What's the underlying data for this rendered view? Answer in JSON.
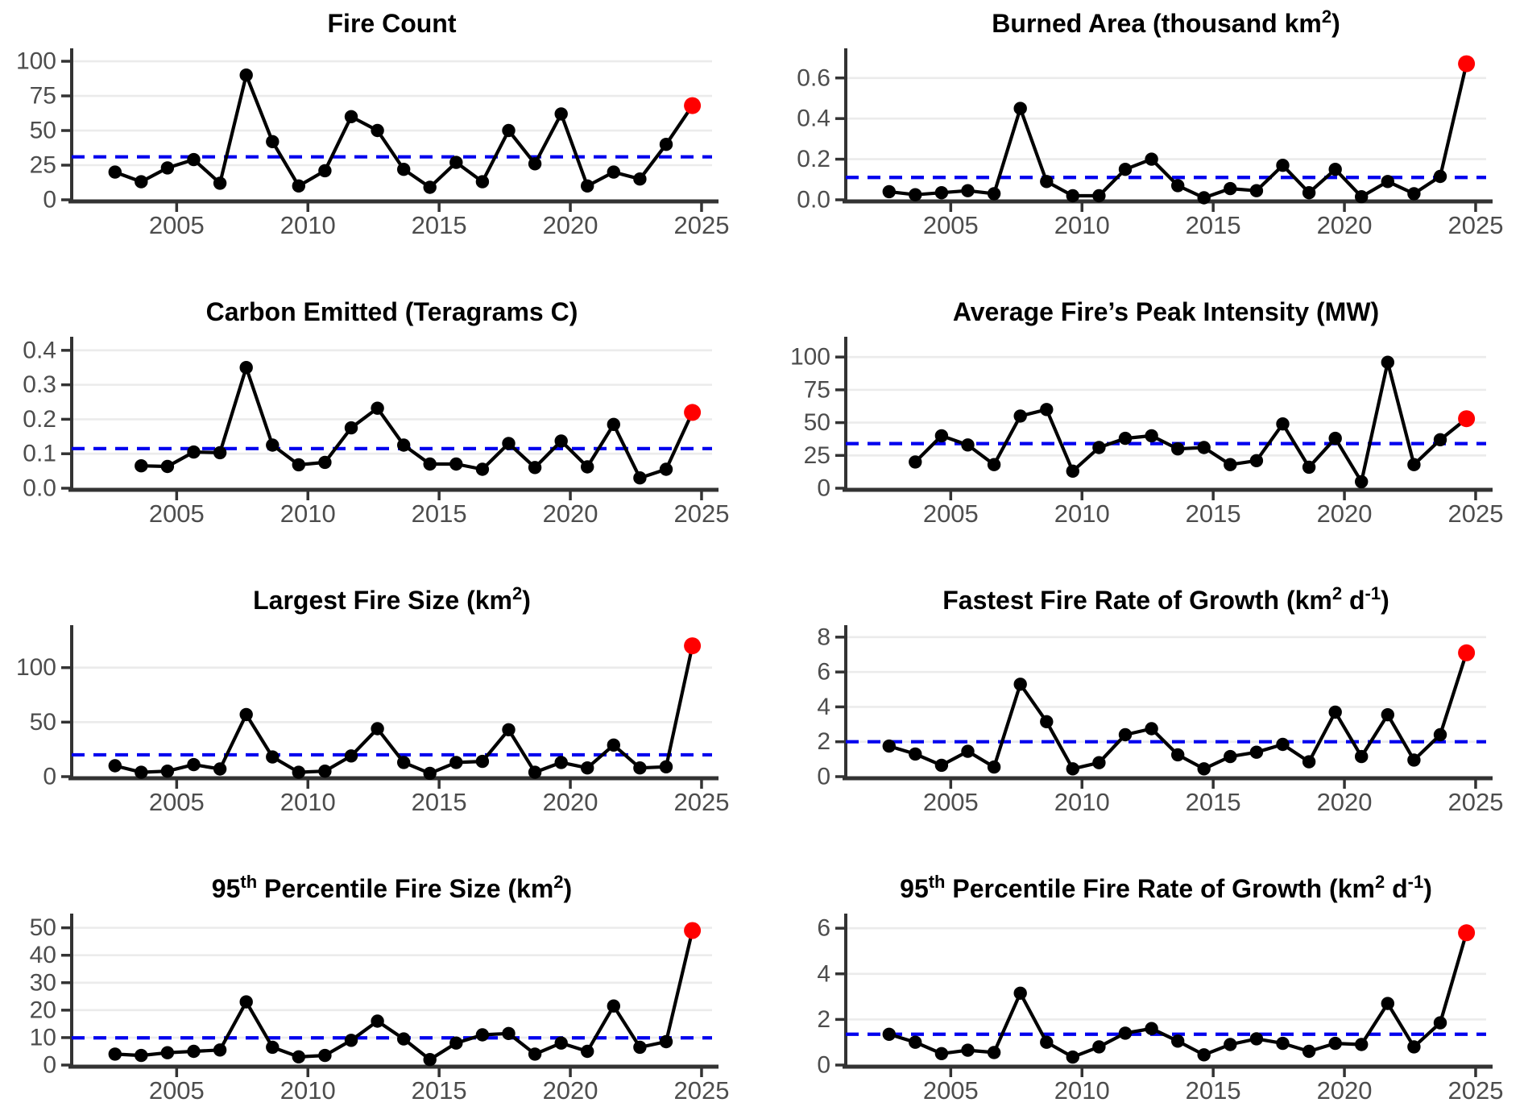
{
  "page": {
    "background": "#ffffff",
    "layout": "2x4 small-multiple line charts of annual fire statistics, 2003-2025, latest year highlighted in red, blue dashed mean line"
  },
  "style": {
    "grid_color": "#ebebeb",
    "axis_color": "#333333",
    "tick_label_color": "#4d4d4d",
    "title_color": "#000000",
    "line_color": "#000000",
    "point_color": "#000000",
    "highlight_point_color": "#ff0000",
    "mean_line_color": "#0000ee"
  },
  "chart_data": [
    {
      "id": "fire-count",
      "type": "line",
      "title_segments": [
        {
          "t": "Fire Count"
        }
      ],
      "years": [
        2003,
        2004,
        2005,
        2006,
        2007,
        2008,
        2009,
        2010,
        2011,
        2012,
        2013,
        2014,
        2015,
        2016,
        2017,
        2018,
        2019,
        2020,
        2021,
        2022,
        2023,
        2024,
        2025
      ],
      "values": [
        20,
        13,
        23,
        29,
        12,
        90,
        42,
        10,
        21,
        60,
        50,
        22,
        9,
        27,
        13,
        50,
        26,
        62,
        10,
        20,
        15,
        40,
        68
      ],
      "mean_line": 31,
      "ytick_values": [
        0,
        25,
        50,
        75,
        100
      ],
      "ytick_labels": [
        "0",
        "25",
        "50",
        "75",
        "100"
      ],
      "ymax": 107,
      "xticks": [
        2005,
        2010,
        2015,
        2020,
        2025
      ],
      "xtick_labels": [
        "2005",
        "2010",
        "2015",
        "2020",
        "2025"
      ],
      "highlight_last": true
    },
    {
      "id": "burned-area",
      "type": "line",
      "title_segments": [
        {
          "t": "Burned Area (thousand km"
        },
        {
          "t": "2",
          "sup": true
        },
        {
          "t": ")"
        }
      ],
      "years": [
        2003,
        2004,
        2005,
        2006,
        2007,
        2008,
        2009,
        2010,
        2011,
        2012,
        2013,
        2014,
        2015,
        2016,
        2017,
        2018,
        2019,
        2020,
        2021,
        2022,
        2023,
        2024,
        2025
      ],
      "values": [
        0.04,
        0.025,
        0.035,
        0.045,
        0.03,
        0.45,
        0.09,
        0.02,
        0.02,
        0.15,
        0.2,
        0.07,
        0.01,
        0.055,
        0.045,
        0.17,
        0.035,
        0.15,
        0.015,
        0.09,
        0.03,
        0.115,
        0.67
      ],
      "mean_line": 0.11,
      "ytick_values": [
        0,
        0.2,
        0.4,
        0.6
      ],
      "ytick_labels": [
        "0.0",
        "0.2",
        "0.4",
        "0.6"
      ],
      "ymax": 0.73,
      "xticks": [
        2005,
        2010,
        2015,
        2020,
        2025
      ],
      "xtick_labels": [
        "2005",
        "2010",
        "2015",
        "2020",
        "2025"
      ],
      "highlight_last": true
    },
    {
      "id": "carbon-emitted",
      "type": "line",
      "title_segments": [
        {
          "t": "Carbon Emitted (Teragrams C)"
        }
      ],
      "years": [
        2004,
        2005,
        2006,
        2007,
        2008,
        2009,
        2010,
        2011,
        2012,
        2013,
        2014,
        2015,
        2016,
        2017,
        2018,
        2019,
        2020,
        2021,
        2022,
        2023,
        2024,
        2025
      ],
      "values": [
        0.065,
        0.063,
        0.105,
        0.103,
        0.35,
        0.125,
        0.068,
        0.075,
        0.175,
        0.232,
        0.125,
        0.07,
        0.07,
        0.055,
        0.13,
        0.06,
        0.137,
        0.062,
        0.185,
        0.03,
        0.055,
        0.22
      ],
      "mean_line": 0.115,
      "ytick_values": [
        0,
        0.1,
        0.2,
        0.3,
        0.4
      ],
      "ytick_labels": [
        "0.0",
        "0.1",
        "0.2",
        "0.3",
        "0.4"
      ],
      "ymax": 0.43,
      "xticks": [
        2005,
        2010,
        2015,
        2020,
        2025
      ],
      "xtick_labels": [
        "2005",
        "2010",
        "2015",
        "2020",
        "2025"
      ],
      "highlight_last": true
    },
    {
      "id": "peak-intensity",
      "type": "line",
      "title_segments": [
        {
          "t": "Average Fire’s Peak Intensity (MW)"
        }
      ],
      "years": [
        2004,
        2005,
        2006,
        2007,
        2008,
        2009,
        2010,
        2011,
        2012,
        2013,
        2014,
        2015,
        2016,
        2017,
        2018,
        2019,
        2020,
        2021,
        2022,
        2023,
        2024,
        2025
      ],
      "values": [
        20,
        40,
        33,
        18,
        55,
        60,
        13,
        31,
        38,
        40,
        30,
        31,
        18,
        21,
        49,
        16,
        38,
        5,
        96,
        18,
        37,
        53
      ],
      "mean_line": 34,
      "ytick_values": [
        0,
        25,
        50,
        75,
        100
      ],
      "ytick_labels": [
        "0",
        "25",
        "50",
        "75",
        "100"
      ],
      "ymax": 113,
      "xticks": [
        2005,
        2010,
        2015,
        2020,
        2025
      ],
      "xtick_labels": [
        "2005",
        "2010",
        "2015",
        "2020",
        "2025"
      ],
      "highlight_last": true
    },
    {
      "id": "largest-fire-size",
      "type": "line",
      "title_segments": [
        {
          "t": "Largest Fire Size (km"
        },
        {
          "t": "2",
          "sup": true
        },
        {
          "t": ")"
        }
      ],
      "years": [
        2003,
        2004,
        2005,
        2006,
        2007,
        2008,
        2009,
        2010,
        2011,
        2012,
        2013,
        2014,
        2015,
        2016,
        2017,
        2018,
        2019,
        2020,
        2021,
        2022,
        2023,
        2024,
        2025
      ],
      "values": [
        10,
        4,
        5,
        11,
        7,
        57,
        18,
        4,
        5,
        19,
        44,
        13,
        3,
        13,
        14,
        43,
        4,
        13,
        8,
        29,
        8,
        9,
        120
      ],
      "mean_line": 20,
      "ytick_values": [
        0,
        50,
        100
      ],
      "ytick_labels": [
        "0",
        "50",
        "100"
      ],
      "ymax": 136,
      "xticks": [
        2005,
        2010,
        2015,
        2020,
        2025
      ],
      "xtick_labels": [
        "2005",
        "2010",
        "2015",
        "2020",
        "2025"
      ],
      "highlight_last": true
    },
    {
      "id": "fastest-growth",
      "type": "line",
      "title_segments": [
        {
          "t": "Fastest Fire Rate of Growth (km"
        },
        {
          "t": "2",
          "sup": true
        },
        {
          "t": " d"
        },
        {
          "t": "-1",
          "sup": true
        },
        {
          "t": ")"
        }
      ],
      "years": [
        2003,
        2004,
        2005,
        2006,
        2007,
        2008,
        2009,
        2010,
        2011,
        2012,
        2013,
        2014,
        2015,
        2016,
        2017,
        2018,
        2019,
        2020,
        2021,
        2022,
        2023,
        2024,
        2025
      ],
      "values": [
        1.75,
        1.3,
        0.65,
        1.45,
        0.55,
        5.3,
        3.15,
        0.45,
        0.8,
        2.4,
        2.75,
        1.25,
        0.45,
        1.15,
        1.4,
        1.85,
        0.85,
        3.7,
        1.15,
        3.55,
        0.95,
        2.4,
        7.1
      ],
      "mean_line": 2,
      "ytick_values": [
        0,
        2,
        4,
        6,
        8
      ],
      "ytick_labels": [
        "0",
        "2",
        "4",
        "6",
        "8"
      ],
      "ymax": 8.5,
      "xticks": [
        2005,
        2010,
        2015,
        2020,
        2025
      ],
      "xtick_labels": [
        "2005",
        "2010",
        "2015",
        "2020",
        "2025"
      ],
      "highlight_last": true
    },
    {
      "id": "p95-fire-size",
      "type": "line",
      "title_segments": [
        {
          "t": "95"
        },
        {
          "t": "th",
          "sup": true
        },
        {
          "t": " Percentile Fire Size (km"
        },
        {
          "t": "2",
          "sup": true
        },
        {
          "t": ")"
        }
      ],
      "years": [
        2003,
        2004,
        2005,
        2006,
        2007,
        2008,
        2009,
        2010,
        2011,
        2012,
        2013,
        2014,
        2015,
        2016,
        2017,
        2018,
        2019,
        2020,
        2021,
        2022,
        2023,
        2024,
        2025
      ],
      "values": [
        4,
        3.5,
        4.5,
        5,
        5.5,
        23,
        6.5,
        3,
        3.5,
        9,
        16,
        9.5,
        2,
        8,
        11,
        11.5,
        4,
        8,
        5,
        21.5,
        6.5,
        8.5,
        49
      ],
      "mean_line": 9.9,
      "ytick_values": [
        0,
        10,
        20,
        30,
        40,
        50
      ],
      "ytick_labels": [
        "0",
        "10",
        "20",
        "30",
        "40",
        "50"
      ],
      "ymax": 54,
      "xticks": [
        2005,
        2010,
        2015,
        2020,
        2025
      ],
      "xtick_labels": [
        "2005",
        "2010",
        "2015",
        "2020",
        "2025"
      ],
      "highlight_last": true
    },
    {
      "id": "p95-growth",
      "type": "line",
      "title_segments": [
        {
          "t": "95"
        },
        {
          "t": "th",
          "sup": true
        },
        {
          "t": " Percentile Fire Rate of Growth (km"
        },
        {
          "t": "2",
          "sup": true
        },
        {
          "t": " d"
        },
        {
          "t": "-1",
          "sup": true
        },
        {
          "t": ")"
        }
      ],
      "years": [
        2003,
        2004,
        2005,
        2006,
        2007,
        2008,
        2009,
        2010,
        2011,
        2012,
        2013,
        2014,
        2015,
        2016,
        2017,
        2018,
        2019,
        2020,
        2021,
        2022,
        2023,
        2024,
        2025
      ],
      "values": [
        1.35,
        1.0,
        0.5,
        0.65,
        0.55,
        3.15,
        1.0,
        0.35,
        0.8,
        1.4,
        1.6,
        1.05,
        0.45,
        0.9,
        1.15,
        0.95,
        0.6,
        0.95,
        0.9,
        2.7,
        0.8,
        1.85,
        5.8
      ],
      "mean_line": 1.35,
      "ytick_values": [
        0,
        2,
        4,
        6
      ],
      "ytick_labels": [
        "0",
        "2",
        "4",
        "6"
      ],
      "ymax": 6.5,
      "xticks": [
        2005,
        2010,
        2015,
        2020,
        2025
      ],
      "xtick_labels": [
        "2005",
        "2010",
        "2015",
        "2020",
        "2025"
      ],
      "highlight_last": true
    }
  ],
  "axes": {
    "x_range_years": [
      2001,
      2025.4
    ],
    "point_year_offset": -0.35
  }
}
